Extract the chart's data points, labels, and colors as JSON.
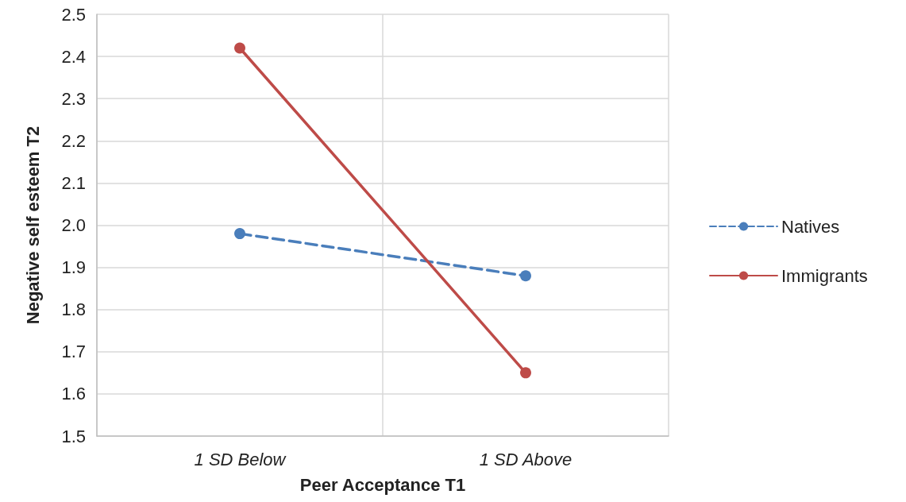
{
  "chart_data": {
    "type": "line",
    "xlabel": "Peer Acceptance T1",
    "ylabel": "Negative self esteem T2",
    "categories": [
      "1 SD Below",
      "1 SD Above"
    ],
    "series": [
      {
        "name": "Natives",
        "color": "#4a7ebb",
        "line_style": "dashed",
        "values": [
          1.98,
          1.88
        ]
      },
      {
        "name": "Immigrants",
        "color": "#be4b48",
        "line_style": "solid",
        "values": [
          2.42,
          1.65
        ]
      }
    ],
    "ylim": [
      1.5,
      2.5
    ],
    "yticks": [
      1.5,
      1.6,
      1.7,
      1.8,
      1.9,
      {
        "value": 2,
        "label": "2.0"
      },
      2.1,
      2.2,
      2.3,
      2.4,
      2.5
    ],
    "grid": true,
    "legend": "right",
    "marker": "circle"
  }
}
